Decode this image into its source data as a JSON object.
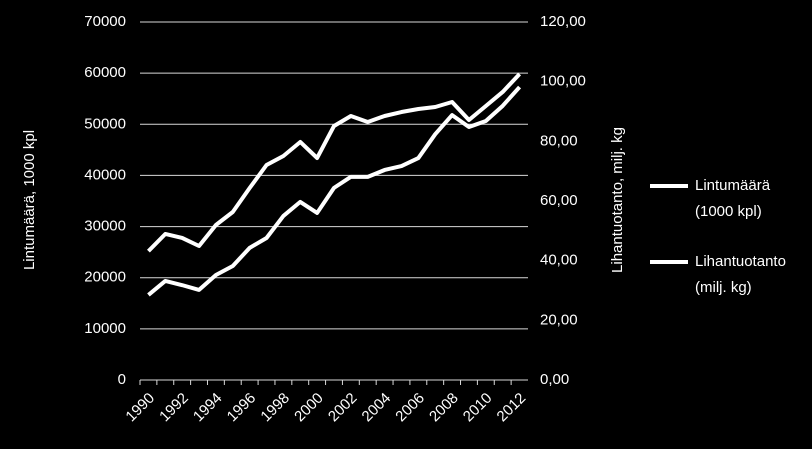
{
  "chart_data": {
    "type": "line",
    "y_label": "Lintumäärä, 1000 kpl",
    "y2_label": "Lihantuotanto, milj. kg",
    "categories": [
      "1990",
      null,
      "1992",
      null,
      "1994",
      null,
      "1996",
      null,
      "1998",
      null,
      "2000",
      null,
      "2002",
      null,
      "2004",
      null,
      "2006",
      null,
      "2008",
      null,
      "2010",
      null,
      "2012"
    ],
    "series": [
      {
        "name": "Lintumäärä (1000 kpl)",
        "color": "#ffffff",
        "values": [
          25200,
          28550,
          27770,
          26200,
          30310,
          32850,
          37540,
          42040,
          43800,
          46540,
          43410,
          49670,
          51620,
          50450,
          51620,
          52400,
          52990,
          53380,
          54360,
          50840,
          53580,
          56320,
          59840
        ]
      },
      {
        "name": "Lihantuotanto (milj. kg)",
        "color": "#ffffff",
        "axis": "y2",
        "values": [
          28.5,
          33.2,
          31.8,
          30.2,
          35.2,
          38.2,
          44.3,
          47.6,
          55.0,
          59.7,
          56.0,
          64.4,
          68.1,
          68.1,
          70.4,
          71.7,
          74.4,
          82.4,
          88.8,
          84.8,
          86.8,
          91.9,
          98.2
        ]
      }
    ],
    "ylim": [
      0,
      70000
    ],
    "yticks": [
      0,
      10000,
      20000,
      30000,
      40000,
      50000,
      60000,
      70000
    ],
    "y2lim": [
      0,
      120
    ],
    "y2ticks": [
      {
        "value": 0,
        "label": "0,00"
      },
      {
        "value": 20,
        "label": "20,00"
      },
      {
        "value": 40,
        "label": "40,00"
      },
      {
        "value": 60,
        "label": "60,00"
      },
      {
        "value": 80,
        "label": "80,00"
      },
      {
        "value": 100,
        "label": "100,00"
      },
      {
        "value": 120,
        "label": "120,00"
      }
    ],
    "grid": true,
    "legend": "right"
  }
}
